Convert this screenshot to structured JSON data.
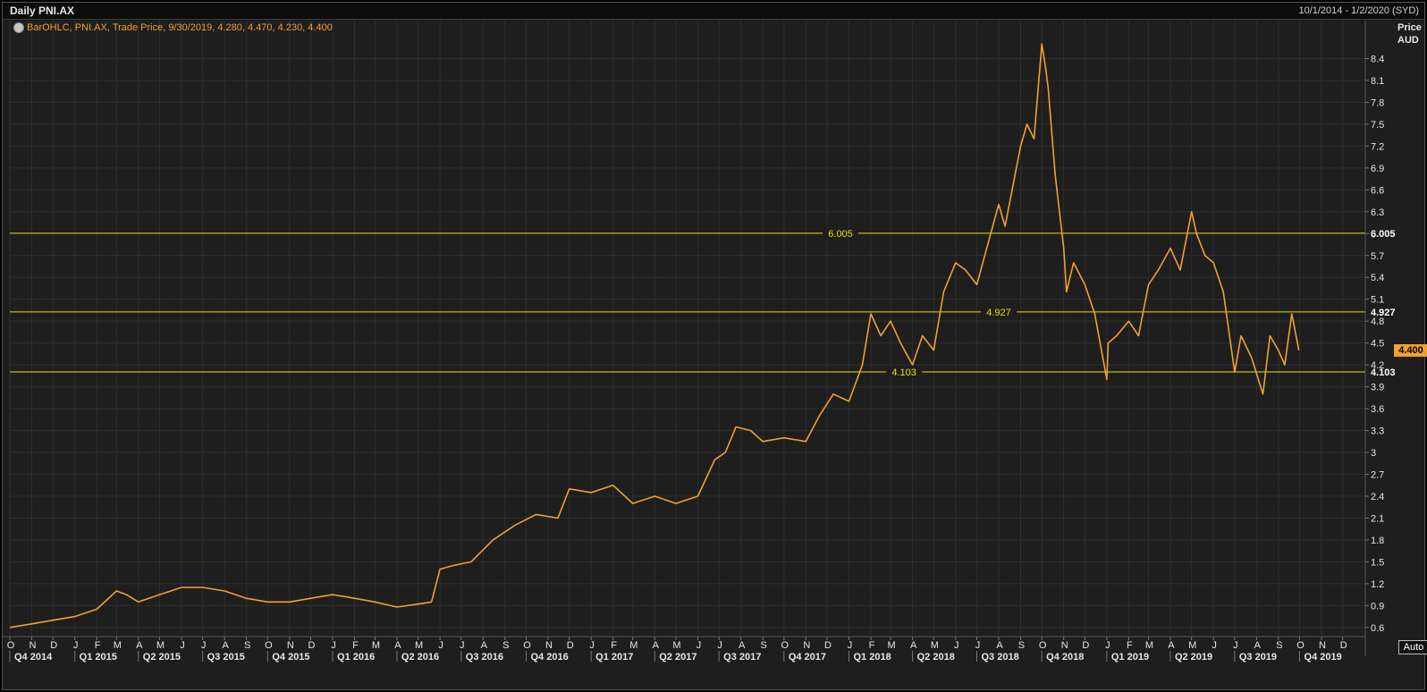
{
  "header": {
    "title": "Daily PNI.AX",
    "date_range": "10/1/2014 - 1/2/2020 (SYD)"
  },
  "legend": {
    "text": "BarOHLC, PNI.AX, Trade Price, 9/30/2019, 4.280, 4.470, 4.230, 4.400"
  },
  "axis": {
    "unit_line1": "Price",
    "unit_line2": "AUD",
    "auto_label": "Auto",
    "last_price_label": "4.400"
  },
  "colors": {
    "background": "#1e1e1e",
    "series": "#f0a030",
    "level_line": "#e8e000",
    "grid": "#2e2e2e"
  },
  "chart_data": {
    "type": "line",
    "title": "Daily PNI.AX",
    "ylabel": "Price AUD",
    "ylim": [
      0.5,
      8.7
    ],
    "xlim": [
      "2014-10-01",
      "2020-01-02"
    ],
    "grid": true,
    "y_ticks": [
      "0.6",
      "0.9",
      "1.2",
      "1.5",
      "1.8",
      "2.1",
      "2.4",
      "2.7",
      "3",
      "3.3",
      "3.6",
      "3.9",
      "4.2",
      "4.5",
      "4.8",
      "5.1",
      "5.4",
      "5.7",
      "6",
      "6.3",
      "6.6",
      "6.9",
      "7.2",
      "7.5",
      "7.8",
      "8.1",
      "8.4"
    ],
    "y_tick_values": [
      0.6,
      0.9,
      1.2,
      1.5,
      1.8,
      2.1,
      2.4,
      2.7,
      3.0,
      3.3,
      3.6,
      3.9,
      4.2,
      4.5,
      4.8,
      5.1,
      5.4,
      5.7,
      6.0,
      6.3,
      6.6,
      6.9,
      7.2,
      7.5,
      7.8,
      8.1,
      8.4
    ],
    "month_labels": [
      "O",
      "N",
      "D",
      "J",
      "F",
      "M",
      "A",
      "M",
      "J",
      "J",
      "A",
      "S",
      "O",
      "N",
      "D",
      "J",
      "F",
      "M",
      "A",
      "M",
      "J",
      "J",
      "A",
      "S",
      "O",
      "N",
      "D",
      "J",
      "F",
      "M",
      "A",
      "M",
      "J",
      "J",
      "A",
      "S",
      "O",
      "N",
      "D",
      "J",
      "F",
      "M",
      "A",
      "M",
      "J",
      "J",
      "A",
      "S",
      "O",
      "N",
      "D",
      "J",
      "F",
      "M",
      "A",
      "M",
      "J",
      "J",
      "A",
      "S",
      "O",
      "N",
      "D",
      "J",
      "F",
      "M",
      "A",
      "M",
      "J",
      "J",
      "A",
      "S",
      "O",
      "N",
      "D"
    ],
    "quarter_labels": [
      "Q4 2014",
      "Q1 2015",
      "Q2 2015",
      "Q3 2015",
      "Q4 2015",
      "Q1 2016",
      "Q2 2016",
      "Q3 2016",
      "Q4 2016",
      "Q1 2017",
      "Q2 2017",
      "Q3 2017",
      "Q4 2017",
      "Q1 2018",
      "Q2 2018",
      "Q3 2018",
      "Q4 2018",
      "Q1 2019",
      "Q2 2019",
      "Q3 2019",
      "Q4 2019"
    ],
    "levels": [
      {
        "value": 6.005,
        "label": "6.005",
        "label_date": "2017-12-20"
      },
      {
        "value": 4.927,
        "label": "4.927",
        "label_date": "2018-08-01"
      },
      {
        "value": 4.103,
        "label": "4.103",
        "label_date": "2018-03-20"
      }
    ],
    "last_price": 4.4,
    "series": [
      {
        "x": [
          "2014-10-01",
          "2014-11-01",
          "2014-12-01",
          "2015-01-01",
          "2015-02-01",
          "2015-03-01",
          "2015-03-15",
          "2015-04-01",
          "2015-05-01",
          "2015-06-01",
          "2015-07-01",
          "2015-08-01",
          "2015-09-01",
          "2015-10-01",
          "2015-11-01",
          "2015-12-01",
          "2016-01-01",
          "2016-02-01",
          "2016-03-01",
          "2016-04-01",
          "2016-05-01",
          "2016-05-20",
          "2016-06-01",
          "2016-06-20",
          "2016-07-15",
          "2016-08-15",
          "2016-09-15",
          "2016-10-15",
          "2016-11-15",
          "2016-12-01",
          "2017-01-01",
          "2017-02-01",
          "2017-03-01",
          "2017-04-01",
          "2017-05-01",
          "2017-06-01",
          "2017-06-25",
          "2017-07-10",
          "2017-07-25",
          "2017-08-15",
          "2017-09-01",
          "2017-10-01",
          "2017-11-01",
          "2017-11-20",
          "2017-12-10",
          "2018-01-01",
          "2018-01-20",
          "2018-02-01",
          "2018-02-15",
          "2018-03-01",
          "2018-03-15",
          "2018-04-01",
          "2018-04-15",
          "2018-05-01",
          "2018-05-15",
          "2018-06-01",
          "2018-06-15",
          "2018-07-01",
          "2018-07-15",
          "2018-08-01",
          "2018-08-10",
          "2018-08-20",
          "2018-09-01",
          "2018-09-10",
          "2018-09-20",
          "2018-10-01",
          "2018-10-06",
          "2018-10-10",
          "2018-10-20",
          "2018-11-01",
          "2018-11-05",
          "2018-11-15",
          "2018-12-01",
          "2018-12-15",
          "2019-01-01",
          "2019-01-03",
          "2019-01-15",
          "2019-02-01",
          "2019-02-15",
          "2019-03-01",
          "2019-03-15",
          "2019-04-01",
          "2019-04-15",
          "2019-05-01",
          "2019-05-08",
          "2019-05-20",
          "2019-06-01",
          "2019-06-15",
          "2019-07-01",
          "2019-07-10",
          "2019-07-25",
          "2019-08-10",
          "2019-08-20",
          "2019-09-01",
          "2019-09-10",
          "2019-09-20",
          "2019-09-30"
        ],
        "y": [
          0.6,
          0.65,
          0.7,
          0.75,
          0.85,
          1.1,
          1.05,
          0.95,
          1.05,
          1.15,
          1.15,
          1.1,
          1.0,
          0.95,
          0.95,
          1.0,
          1.05,
          1.0,
          0.95,
          0.88,
          0.92,
          0.95,
          1.4,
          1.45,
          1.5,
          1.8,
          2.0,
          2.15,
          2.1,
          2.5,
          2.45,
          2.55,
          2.3,
          2.4,
          2.3,
          2.4,
          2.9,
          3.0,
          3.35,
          3.3,
          3.15,
          3.2,
          3.15,
          3.5,
          3.8,
          3.7,
          4.2,
          4.9,
          4.6,
          4.8,
          4.5,
          4.2,
          4.6,
          4.4,
          5.2,
          5.6,
          5.5,
          5.3,
          5.8,
          6.4,
          6.1,
          6.6,
          7.2,
          7.5,
          7.3,
          8.6,
          8.3,
          8.0,
          6.8,
          5.8,
          5.2,
          5.6,
          5.3,
          4.9,
          4.0,
          4.5,
          4.6,
          4.8,
          4.6,
          5.3,
          5.5,
          5.8,
          5.5,
          6.3,
          6.0,
          5.7,
          5.6,
          5.2,
          4.1,
          4.6,
          4.3,
          3.8,
          4.6,
          4.4,
          4.2,
          4.9,
          4.4
        ]
      }
    ]
  }
}
